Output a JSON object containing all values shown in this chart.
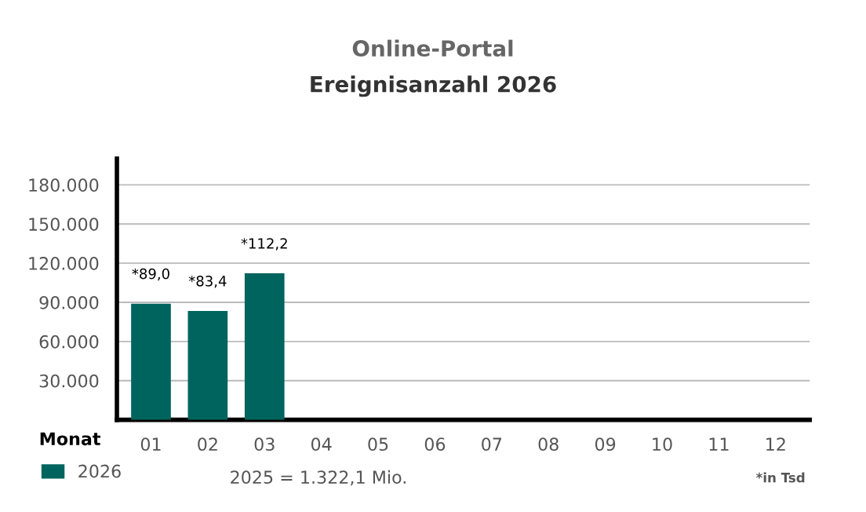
{
  "chart_data": {
    "type": "bar",
    "title": "Online-Portal",
    "subtitle": "Ereignisanzahl 2026",
    "xlabel": "Monat",
    "categories": [
      "01",
      "02",
      "03",
      "04",
      "05",
      "06",
      "07",
      "08",
      "09",
      "10",
      "11",
      "12"
    ],
    "series": [
      {
        "name": "2026",
        "color": "#00645e",
        "values": [
          89000,
          83400,
          112200,
          null,
          null,
          null,
          null,
          null,
          null,
          null,
          null,
          null
        ]
      }
    ],
    "ylim": [
      0,
      200000
    ],
    "yticks": [
      {
        "value": 30000,
        "label": "30.000"
      },
      {
        "value": 60000,
        "label": "60.000"
      },
      {
        "value": 90000,
        "label": "90.000"
      },
      {
        "value": 120000,
        "label": "120.000"
      },
      {
        "value": 150000,
        "label": "150.000"
      },
      {
        "value": 180000,
        "label": "180.000"
      }
    ],
    "grid": "y",
    "legend": "bottom left",
    "annotations": [
      "2025 = 1.322,1 Mio.",
      "*in Tsd",
      {
        "text": "*89,0",
        "x": "01",
        "y": 89000
      },
      {
        "text": "*83,4",
        "x": "02",
        "y": 83400
      },
      {
        "text": "*112,2",
        "x": "03",
        "y": 112200
      }
    ]
  }
}
